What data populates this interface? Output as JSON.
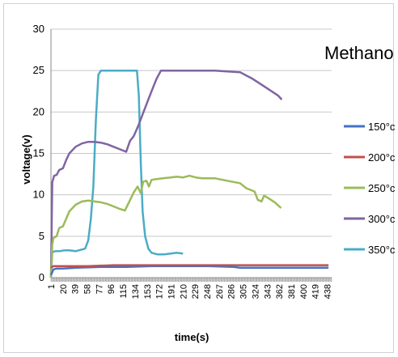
{
  "chart_data": {
    "type": "line",
    "title": "Methanol",
    "xlabel": "time(s)",
    "ylabel": "voltage(v)",
    "ylim": [
      0,
      30
    ],
    "yticks": [
      "0",
      "5",
      "10",
      "15",
      "20",
      "25",
      "30"
    ],
    "xlim": [
      1,
      445
    ],
    "xticks": [
      1,
      20,
      39,
      58,
      77,
      96,
      115,
      134,
      153,
      172,
      191,
      210,
      229,
      248,
      267,
      286,
      305,
      324,
      343,
      362,
      381,
      400,
      419,
      438
    ],
    "grid": "horizontal",
    "legend_position": "right",
    "series": [
      {
        "name": "150°c",
        "color": "#4472c4",
        "points": [
          [
            1,
            0.3
          ],
          [
            5,
            1.0
          ],
          [
            10,
            1.1
          ],
          [
            20,
            1.1
          ],
          [
            40,
            1.2
          ],
          [
            80,
            1.3
          ],
          [
            120,
            1.3
          ],
          [
            160,
            1.4
          ],
          [
            200,
            1.4
          ],
          [
            250,
            1.4
          ],
          [
            290,
            1.3
          ],
          [
            300,
            1.2
          ],
          [
            330,
            1.2
          ],
          [
            360,
            1.2
          ],
          [
            400,
            1.2
          ],
          [
            440,
            1.2
          ]
        ]
      },
      {
        "name": "200°c",
        "color": "#c0504d",
        "points": [
          [
            1,
            1.2
          ],
          [
            5,
            1.4
          ],
          [
            20,
            1.4
          ],
          [
            60,
            1.4
          ],
          [
            100,
            1.5
          ],
          [
            140,
            1.5
          ],
          [
            180,
            1.5
          ],
          [
            220,
            1.5
          ],
          [
            260,
            1.5
          ],
          [
            300,
            1.5
          ],
          [
            340,
            1.5
          ],
          [
            380,
            1.5
          ],
          [
            420,
            1.5
          ],
          [
            440,
            1.5
          ]
        ]
      },
      {
        "name": "250°c",
        "color": "#9bbb59",
        "points": [
          [
            1,
            0
          ],
          [
            3,
            4
          ],
          [
            5,
            4.8
          ],
          [
            10,
            5.0
          ],
          [
            14,
            6.0
          ],
          [
            20,
            6.2
          ],
          [
            30,
            8.0
          ],
          [
            40,
            8.8
          ],
          [
            50,
            9.2
          ],
          [
            60,
            9.3
          ],
          [
            70,
            9.2
          ],
          [
            80,
            9.1
          ],
          [
            90,
            8.9
          ],
          [
            100,
            8.6
          ],
          [
            110,
            8.3
          ],
          [
            118,
            8.1
          ],
          [
            125,
            9.2
          ],
          [
            132,
            10.3
          ],
          [
            138,
            11.0
          ],
          [
            143,
            10.2
          ],
          [
            147,
            11.6
          ],
          [
            152,
            11.7
          ],
          [
            156,
            11.0
          ],
          [
            160,
            11.8
          ],
          [
            168,
            11.9
          ],
          [
            178,
            12.0
          ],
          [
            190,
            12.1
          ],
          [
            200,
            12.2
          ],
          [
            210,
            12.1
          ],
          [
            220,
            12.3
          ],
          [
            230,
            12.1
          ],
          [
            240,
            12.0
          ],
          [
            260,
            12.0
          ],
          [
            280,
            11.7
          ],
          [
            300,
            11.4
          ],
          [
            310,
            10.8
          ],
          [
            323,
            10.4
          ],
          [
            328,
            9.4
          ],
          [
            334,
            9.2
          ],
          [
            338,
            9.9
          ],
          [
            345,
            9.6
          ],
          [
            355,
            9.1
          ],
          [
            365,
            8.4
          ]
        ]
      },
      {
        "name": "300°c",
        "color": "#8064a2",
        "points": [
          [
            1,
            0
          ],
          [
            3,
            11.5
          ],
          [
            6,
            12.3
          ],
          [
            10,
            12.4
          ],
          [
            14,
            13.0
          ],
          [
            20,
            13.2
          ],
          [
            25,
            14.2
          ],
          [
            30,
            15.0
          ],
          [
            40,
            15.8
          ],
          [
            50,
            16.2
          ],
          [
            60,
            16.4
          ],
          [
            70,
            16.4
          ],
          [
            80,
            16.3
          ],
          [
            90,
            16.1
          ],
          [
            100,
            15.8
          ],
          [
            110,
            15.5
          ],
          [
            120,
            15.2
          ],
          [
            126,
            16.5
          ],
          [
            132,
            17.1
          ],
          [
            140,
            18.5
          ],
          [
            150,
            20.5
          ],
          [
            160,
            22.5
          ],
          [
            168,
            24.0
          ],
          [
            175,
            25.0
          ],
          [
            200,
            25.0
          ],
          [
            230,
            25.0
          ],
          [
            260,
            25.0
          ],
          [
            280,
            24.9
          ],
          [
            300,
            24.8
          ],
          [
            320,
            24.0
          ],
          [
            340,
            23.0
          ],
          [
            360,
            22.0
          ],
          [
            366,
            21.5
          ]
        ]
      },
      {
        "name": "350°c",
        "color": "#4bacc6",
        "points": [
          [
            1,
            0
          ],
          [
            3,
            3.1
          ],
          [
            8,
            3.2
          ],
          [
            15,
            3.2
          ],
          [
            22,
            3.3
          ],
          [
            30,
            3.3
          ],
          [
            40,
            3.2
          ],
          [
            45,
            3.3
          ],
          [
            55,
            3.5
          ],
          [
            60,
            4.5
          ],
          [
            64,
            7.0
          ],
          [
            68,
            11.0
          ],
          [
            72,
            19.0
          ],
          [
            76,
            24.5
          ],
          [
            80,
            25.0
          ],
          [
            100,
            25.0
          ],
          [
            120,
            25.0
          ],
          [
            137,
            25.0
          ],
          [
            140,
            22.0
          ],
          [
            143,
            14.0
          ],
          [
            146,
            8.0
          ],
          [
            150,
            5.0
          ],
          [
            155,
            3.5
          ],
          [
            160,
            3.0
          ],
          [
            170,
            2.8
          ],
          [
            180,
            2.8
          ],
          [
            190,
            2.9
          ],
          [
            200,
            3.0
          ],
          [
            210,
            2.9
          ]
        ]
      }
    ]
  }
}
